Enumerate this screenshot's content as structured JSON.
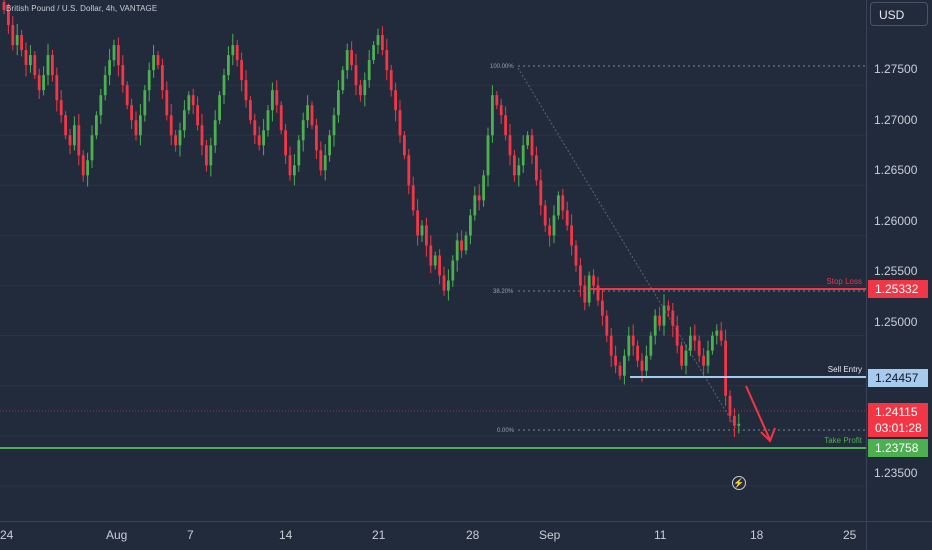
{
  "header": {
    "symbol_title": "British Pound / U.S. Dollar, 4h, VANTAGE"
  },
  "currency_button": {
    "label": "USD"
  },
  "price_axis": {
    "ticks": [
      "1.27500",
      "1.27000",
      "1.26500",
      "1.26000",
      "1.25500",
      "1.25000",
      "1.23500"
    ]
  },
  "time_axis": {
    "ticks": [
      "24",
      "Aug",
      "7",
      "14",
      "21",
      "28",
      "Sep",
      "11",
      "18",
      "25"
    ]
  },
  "levels": {
    "stop_loss": {
      "label": "Stop Loss",
      "price": "1.25332",
      "color": "#f23645"
    },
    "sell_entry": {
      "label": "Sell Entry",
      "price": "1.24457",
      "color": "#a7cbef"
    },
    "take_profit": {
      "label": "Take Profit",
      "price": "1.23758",
      "color": "#4caf50"
    },
    "last_price": {
      "price": "1.24115",
      "countdown": "03:01:28",
      "color": "#f23645"
    }
  },
  "fib": {
    "level_100": "100.00%",
    "level_382": "38.20%",
    "level_0": "0.00%"
  },
  "icons": {
    "flash": "lightning-icon"
  },
  "chart_data": {
    "type": "candlestick",
    "symbol": "GBPUSD",
    "timeframe": "4h",
    "ylim": [
      1.2315,
      1.2835
    ],
    "closes": [
      1.2825,
      1.281,
      1.279,
      1.28,
      1.2785,
      1.277,
      1.278,
      1.276,
      1.2745,
      1.276,
      1.278,
      1.276,
      1.2735,
      1.272,
      1.27,
      1.269,
      1.271,
      1.268,
      1.266,
      1.2675,
      1.27,
      1.272,
      1.274,
      1.276,
      1.2775,
      1.279,
      1.277,
      1.275,
      1.273,
      1.2715,
      1.27,
      1.272,
      1.2745,
      1.2765,
      1.278,
      1.277,
      1.2745,
      1.272,
      1.27,
      1.269,
      1.2705,
      1.2725,
      1.274,
      1.273,
      1.271,
      1.269,
      1.267,
      1.269,
      1.2715,
      1.274,
      1.276,
      1.278,
      1.279,
      1.2775,
      1.2755,
      1.2735,
      1.2715,
      1.27,
      1.269,
      1.2705,
      1.2725,
      1.2745,
      1.273,
      1.2705,
      1.268,
      1.266,
      1.267,
      1.2695,
      1.2715,
      1.273,
      1.271,
      1.2685,
      1.2665,
      1.268,
      1.27,
      1.272,
      1.2745,
      1.2765,
      1.2785,
      1.277,
      1.275,
      1.274,
      1.2755,
      1.2775,
      1.279,
      1.28,
      1.2785,
      1.2765,
      1.2745,
      1.2725,
      1.27,
      1.268,
      1.265,
      1.2625,
      1.26,
      1.261,
      1.259,
      1.257,
      1.258,
      1.256,
      1.2545,
      1.2555,
      1.2575,
      1.2595,
      1.2585,
      1.26,
      1.262,
      1.264,
      1.2635,
      1.266,
      1.27,
      1.274,
      1.273,
      1.272,
      1.27,
      1.268,
      1.266,
      1.267,
      1.269,
      1.27,
      1.268,
      1.2655,
      1.263,
      1.261,
      1.26,
      1.262,
      1.264,
      1.2625,
      1.261,
      1.259,
      1.257,
      1.255,
      1.2533,
      1.256,
      1.255,
      1.2535,
      1.252,
      1.25,
      1.248,
      1.247,
      1.246,
      1.248,
      1.25,
      1.249,
      1.2475,
      1.2465,
      1.248,
      1.25,
      1.252,
      1.251,
      1.253,
      1.2525,
      1.251,
      1.249,
      1.247,
      1.2485,
      1.25,
      1.2495,
      1.248,
      1.247,
      1.2485,
      1.25,
      1.2505,
      1.2495,
      1.244,
      1.242,
      1.241,
      1.2412
    ]
  }
}
